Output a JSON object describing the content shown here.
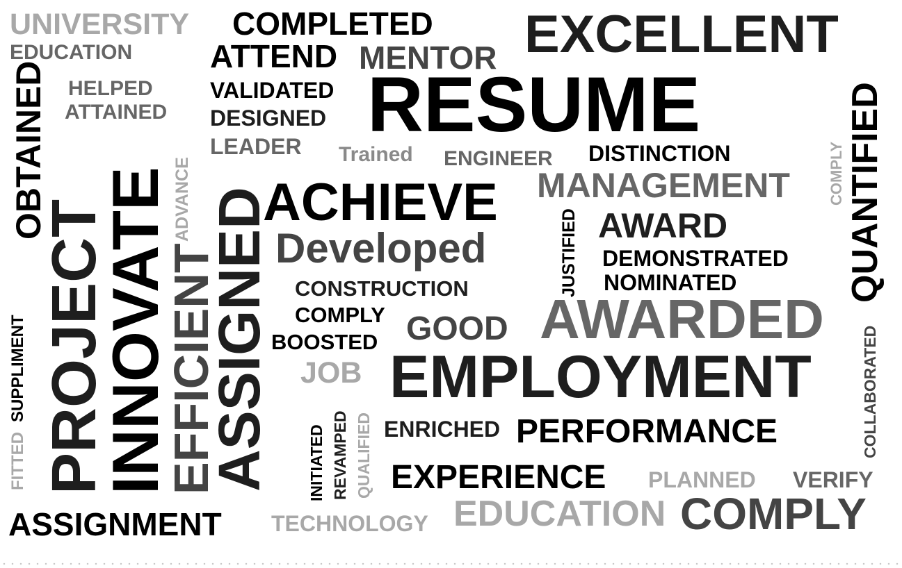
{
  "words": {
    "university": "UNIVERSITY",
    "completed": "COMPLETED",
    "excellent": "EXCELLENT",
    "education_top": "EDUCATION",
    "attend": "ATTEND",
    "mentor": "MENTOR",
    "resume": "RESUME",
    "helped": "HELPED",
    "validated": "VALIDATED",
    "attained": "ATTAINED",
    "designed": "DESIGNED",
    "leader": "LEADER",
    "trained": "Trained",
    "engineer": "ENGINEER",
    "distinction": "DISTINCTION",
    "obtained": "OBTAINED",
    "project": "PROJECT",
    "innovate": "INNOVATE",
    "advance": "ADVANCE",
    "efficient": "EFFICIENT",
    "assigned": "ASSIGNED",
    "achieve": "ACHIEVE",
    "management": "MANAGEMENT",
    "comply_vertical": "COMPLY",
    "quantified": "QUANTIFIED",
    "justified": "JUSTIFIED",
    "award": "AWARD",
    "developed": "Developed",
    "demonstrated": "DEMONSTRATED",
    "nominated": "NOMINATED",
    "construction": "CONSTRUCTION",
    "awarded": "AWARDED",
    "comply_mid": "COMPLY",
    "good": "GOOD",
    "boosted": "BOOSTED",
    "collaborated": "COLLABORATED",
    "job": "JOB",
    "employment": "EMPLOYMENT",
    "suppliment": "SUPPLIMENT",
    "fitted": "FITTED",
    "initiated": "INITIATED",
    "revamped": "REVAMPED",
    "qualified": "QUALIFIED",
    "enriched": "ENRICHED",
    "performance": "PERFORMANCE",
    "experience": "EXPERIENCE",
    "planned": "PLANNED",
    "verify": "VERIFY",
    "assignment": "ASSIGNMENT",
    "technology": "TECHNOLOGY",
    "education_bottom": "EDUCATION",
    "comply_bottom": "COMPLY"
  },
  "colors": {
    "black": "#000000",
    "near_black": "#1e1e1e",
    "dark_gray": "#444444",
    "mid_gray": "#666666",
    "gray": "#8a8a8a",
    "light_gray": "#a8a8a8",
    "background": "#ffffff"
  }
}
